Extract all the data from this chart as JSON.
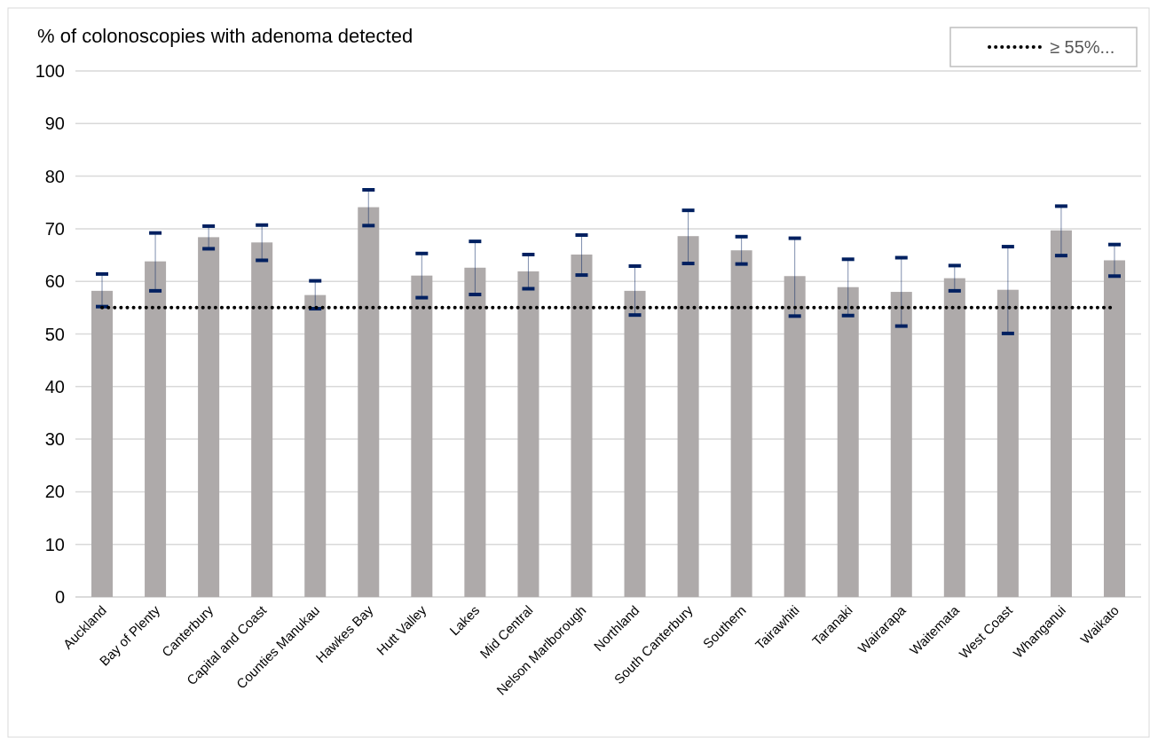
{
  "chart_data": {
    "type": "bar",
    "ylabel": "% of colonoscopies with adenoma detected",
    "categories": [
      "Auckland",
      "Bay of Plenty",
      "Canterbury",
      "Capital and Coast",
      "Counties Manukau",
      "Hawkes Bay",
      "Hutt Valley",
      "Lakes",
      "Mid Central",
      "Nelson Marlborough",
      "Northland",
      "South Canterbury",
      "Southern",
      "Tairawhiti",
      "Taranaki",
      "Wairarapa",
      "Waitemata",
      "West Coast",
      "Whanganui",
      "Waikato"
    ],
    "series": [
      {
        "color": "#aeaaaa",
        "values": [
          58.2,
          63.8,
          68.4,
          67.4,
          57.4,
          74.1,
          61.1,
          62.6,
          61.9,
          65.1,
          58.2,
          68.6,
          65.9,
          61.0,
          58.9,
          58.0,
          60.6,
          58.4,
          69.7,
          64.0
        ],
        "errors": [
          [
            55.2,
            61.4
          ],
          [
            58.2,
            69.2
          ],
          [
            66.2,
            70.5
          ],
          [
            64.0,
            70.7
          ],
          [
            54.8,
            60.1
          ],
          [
            70.6,
            77.4
          ],
          [
            56.9,
            65.3
          ],
          [
            57.5,
            67.6
          ],
          [
            58.6,
            65.1
          ],
          [
            61.2,
            68.8
          ],
          [
            53.6,
            62.9
          ],
          [
            63.4,
            73.5
          ],
          [
            63.3,
            68.5
          ],
          [
            53.4,
            68.2
          ],
          [
            53.5,
            64.2
          ],
          [
            51.5,
            64.5
          ],
          [
            58.2,
            63.0
          ],
          [
            50.1,
            66.6
          ],
          [
            64.9,
            74.3
          ],
          [
            61.0,
            67.0
          ]
        ]
      }
    ],
    "ylim": [
      0,
      100
    ],
    "yticks": [
      0,
      10,
      20,
      30,
      40,
      50,
      60,
      70,
      80,
      90,
      100
    ],
    "grid": "y",
    "ref_lines": [
      {
        "axis": "y",
        "value": 55,
        "label": "≥ 55%...",
        "color": "#000000",
        "line_style": "dotted"
      }
    ],
    "legend": "top right"
  }
}
